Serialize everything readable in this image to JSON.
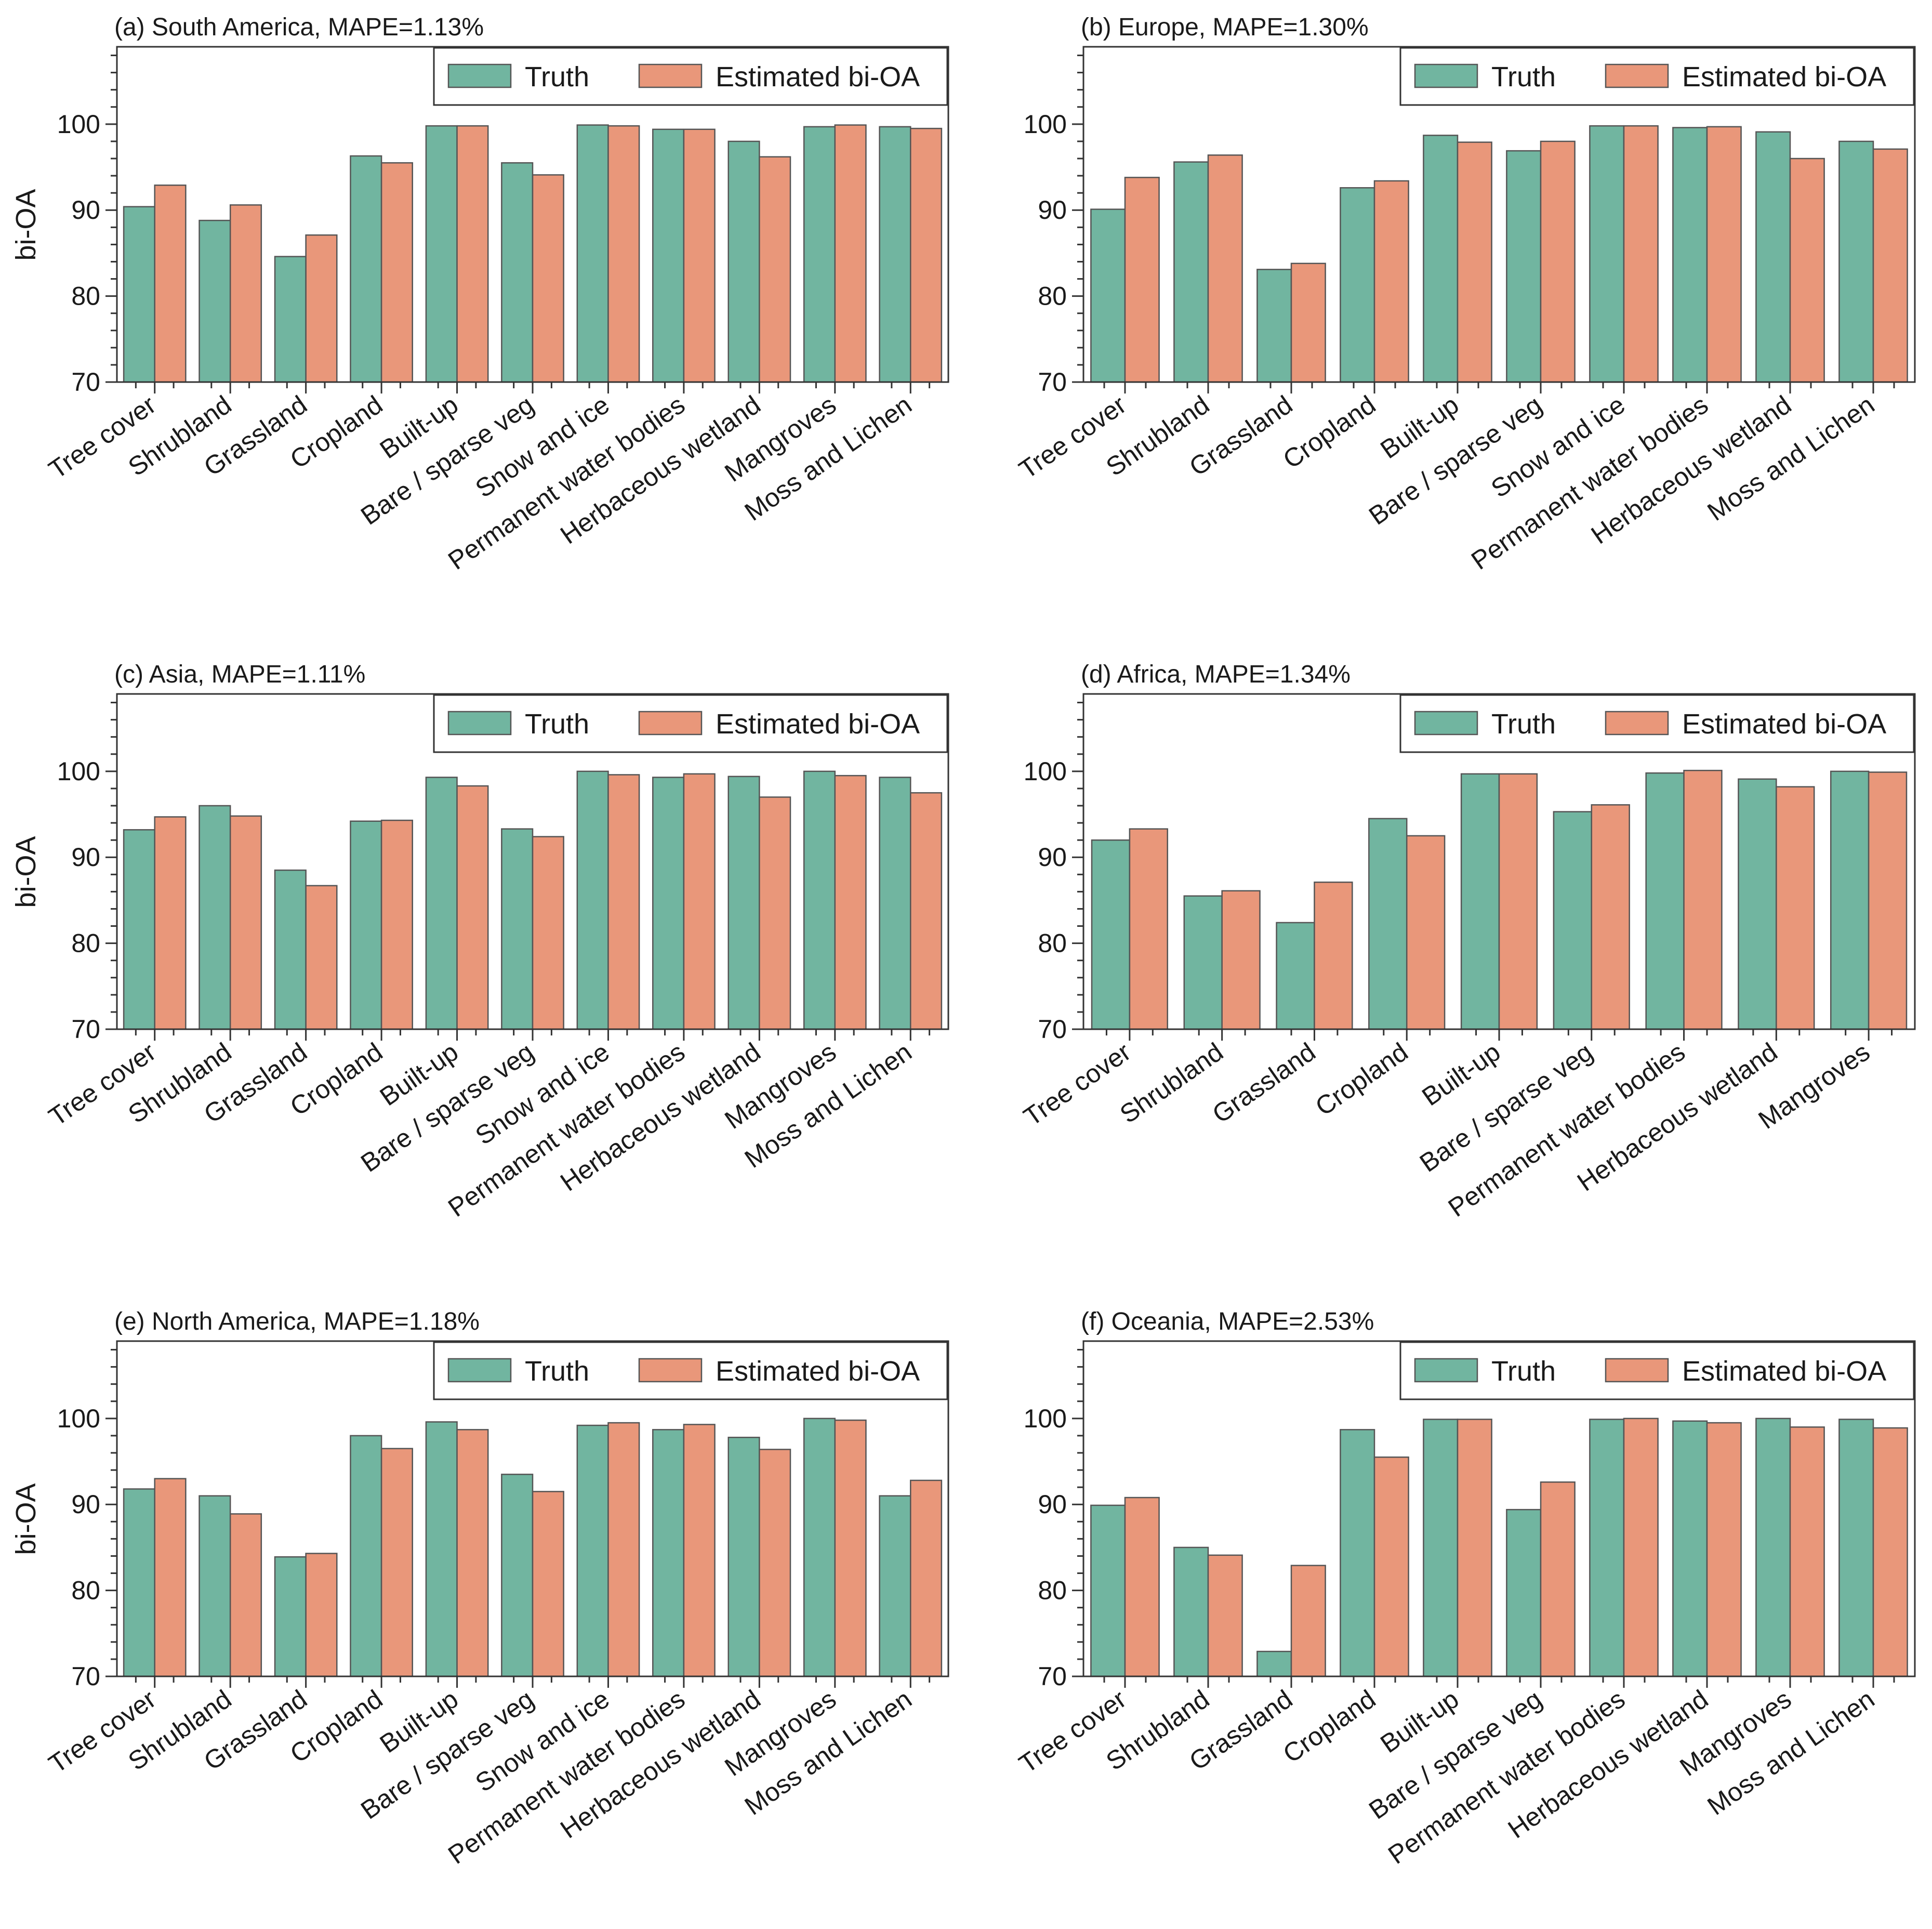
{
  "figure": {
    "colors": {
      "truth": "#71b5a0",
      "estimated": "#e9977a",
      "edge": "#555555",
      "axis": "#333333"
    }
  },
  "legend": {
    "truth_label": "Truth",
    "estimated_label": "Estimated bi-OA"
  },
  "chart_data": [
    {
      "type": "bar",
      "id": "a",
      "title": "(a) South  America, MAPE=1.13%",
      "ylabel": "bi-OA",
      "ylim": [
        70,
        109
      ],
      "yticks": [
        70,
        80,
        90,
        100
      ],
      "categories": [
        "Tree cover",
        "Shrubland",
        "Grassland",
        "Cropland",
        "Built-up",
        "Bare / sparse veg",
        "Snow and ice",
        "Permanent water bodies",
        "Herbaceous wetland",
        "Mangroves",
        "Moss and Lichen"
      ],
      "series": [
        {
          "name": "Truth",
          "values": [
            90.4,
            88.8,
            84.6,
            96.3,
            99.8,
            95.5,
            99.9,
            99.4,
            98.0,
            99.7,
            99.7
          ]
        },
        {
          "name": "Estimated bi-OA",
          "values": [
            92.9,
            90.6,
            87.1,
            95.5,
            99.8,
            94.1,
            99.8,
            99.4,
            96.2,
            99.9,
            99.5
          ]
        }
      ]
    },
    {
      "type": "bar",
      "id": "b",
      "title": "(b) Europe, MAPE=1.30%",
      "ylabel": "",
      "ylim": [
        70,
        109
      ],
      "yticks": [
        70,
        80,
        90,
        100
      ],
      "categories": [
        "Tree cover",
        "Shrubland",
        "Grassland",
        "Cropland",
        "Built-up",
        "Bare / sparse veg",
        "Snow and ice",
        "Permanent water bodies",
        "Herbaceous wetland",
        "Moss and Lichen"
      ],
      "series": [
        {
          "name": "Truth",
          "values": [
            90.1,
            95.6,
            83.1,
            92.6,
            98.7,
            96.9,
            99.8,
            99.6,
            99.1,
            98.0
          ]
        },
        {
          "name": "Estimated bi-OA",
          "values": [
            93.8,
            96.4,
            83.8,
            93.4,
            97.9,
            98.0,
            99.8,
            99.7,
            96.0,
            97.1
          ]
        }
      ]
    },
    {
      "type": "bar",
      "id": "c",
      "title": "(c) Asia, MAPE=1.11%",
      "ylabel": "bi-OA",
      "ylim": [
        70,
        109
      ],
      "yticks": [
        70,
        80,
        90,
        100
      ],
      "categories": [
        "Tree cover",
        "Shrubland",
        "Grassland",
        "Cropland",
        "Built-up",
        "Bare / sparse veg",
        "Snow and ice",
        "Permanent water bodies",
        "Herbaceous wetland",
        "Mangroves",
        "Moss and Lichen"
      ],
      "series": [
        {
          "name": "Truth",
          "values": [
            93.2,
            96.0,
            88.5,
            94.2,
            99.3,
            93.3,
            100.0,
            99.3,
            99.4,
            100.0,
            99.3
          ]
        },
        {
          "name": "Estimated bi-OA",
          "values": [
            94.7,
            94.8,
            86.7,
            94.3,
            98.3,
            92.4,
            99.6,
            99.7,
            97.0,
            99.5,
            97.5
          ]
        }
      ]
    },
    {
      "type": "bar",
      "id": "d",
      "title": "(d) Africa, MAPE=1.34%",
      "ylabel": "",
      "ylim": [
        70,
        109
      ],
      "yticks": [
        70,
        80,
        90,
        100
      ],
      "categories": [
        "Tree cover",
        "Shrubland",
        "Grassland",
        "Cropland",
        "Built-up",
        "Bare / sparse veg",
        "Permanent water bodies",
        "Herbaceous wetland",
        "Mangroves"
      ],
      "series": [
        {
          "name": "Truth",
          "values": [
            92.0,
            85.5,
            82.4,
            94.5,
            99.7,
            95.3,
            99.8,
            99.1,
            100.0
          ]
        },
        {
          "name": "Estimated bi-OA",
          "values": [
            93.3,
            86.1,
            87.1,
            92.5,
            99.7,
            96.1,
            100.1,
            98.2,
            99.9
          ]
        }
      ]
    },
    {
      "type": "bar",
      "id": "e",
      "title": "(e) North  America, MAPE=1.18%",
      "ylabel": "bi-OA",
      "ylim": [
        70,
        109
      ],
      "yticks": [
        70,
        80,
        90,
        100
      ],
      "categories": [
        "Tree cover",
        "Shrubland",
        "Grassland",
        "Cropland",
        "Built-up",
        "Bare / sparse veg",
        "Snow and ice",
        "Permanent water bodies",
        "Herbaceous wetland",
        "Mangroves",
        "Moss and Lichen"
      ],
      "series": [
        {
          "name": "Truth",
          "values": [
            91.8,
            91.0,
            83.9,
            98.0,
            99.6,
            93.5,
            99.2,
            98.7,
            97.8,
            100.0,
            91.0
          ]
        },
        {
          "name": "Estimated bi-OA",
          "values": [
            93.0,
            88.9,
            84.3,
            96.5,
            98.7,
            91.5,
            99.5,
            99.3,
            96.4,
            99.8,
            92.8
          ]
        }
      ]
    },
    {
      "type": "bar",
      "id": "f",
      "title": "(f) Oceania, MAPE=2.53%",
      "ylabel": "",
      "ylim": [
        70,
        109
      ],
      "yticks": [
        70,
        80,
        90,
        100
      ],
      "categories": [
        "Tree cover",
        "Shrubland",
        "Grassland",
        "Cropland",
        "Built-up",
        "Bare / sparse veg",
        "Permanent water bodies",
        "Herbaceous wetland",
        "Mangroves",
        "Moss and Lichen"
      ],
      "series": [
        {
          "name": "Truth",
          "values": [
            89.9,
            85.0,
            72.9,
            98.7,
            99.9,
            89.4,
            99.9,
            99.7,
            100.0,
            99.9
          ]
        },
        {
          "name": "Estimated bi-OA",
          "values": [
            90.8,
            84.1,
            82.9,
            95.5,
            99.9,
            92.6,
            100.0,
            99.5,
            99.0,
            98.9
          ]
        }
      ]
    }
  ]
}
